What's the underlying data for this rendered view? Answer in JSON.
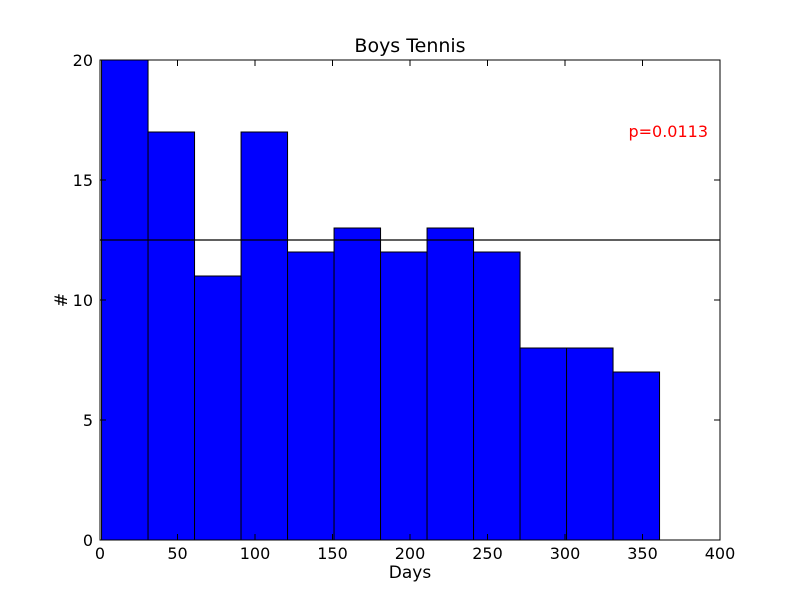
{
  "chart_data": {
    "type": "bar",
    "title": "Boys Tennis",
    "xlabel": "Days",
    "ylabel": "#",
    "xlim": [
      0,
      400
    ],
    "ylim": [
      0,
      20
    ],
    "xticks": [
      0,
      50,
      100,
      150,
      200,
      250,
      300,
      350,
      400
    ],
    "yticks": [
      0,
      5,
      10,
      15,
      20
    ],
    "bins": [
      {
        "start": 1,
        "end": 31,
        "value": 20
      },
      {
        "start": 31,
        "end": 61,
        "value": 17
      },
      {
        "start": 61,
        "end": 91,
        "value": 11
      },
      {
        "start": 91,
        "end": 121,
        "value": 17
      },
      {
        "start": 121,
        "end": 151,
        "value": 12
      },
      {
        "start": 151,
        "end": 181,
        "value": 13
      },
      {
        "start": 181,
        "end": 211,
        "value": 12
      },
      {
        "start": 211,
        "end": 241,
        "value": 13
      },
      {
        "start": 241,
        "end": 271,
        "value": 12
      },
      {
        "start": 271,
        "end": 301,
        "value": 8
      },
      {
        "start": 301,
        "end": 331,
        "value": 8
      },
      {
        "start": 331,
        "end": 361,
        "value": 7
      }
    ],
    "reference_line": 12.5,
    "annotation": "p=0.0113",
    "annotation_color": "#ff0000",
    "bar_color": "#0000ff",
    "grid": false
  }
}
